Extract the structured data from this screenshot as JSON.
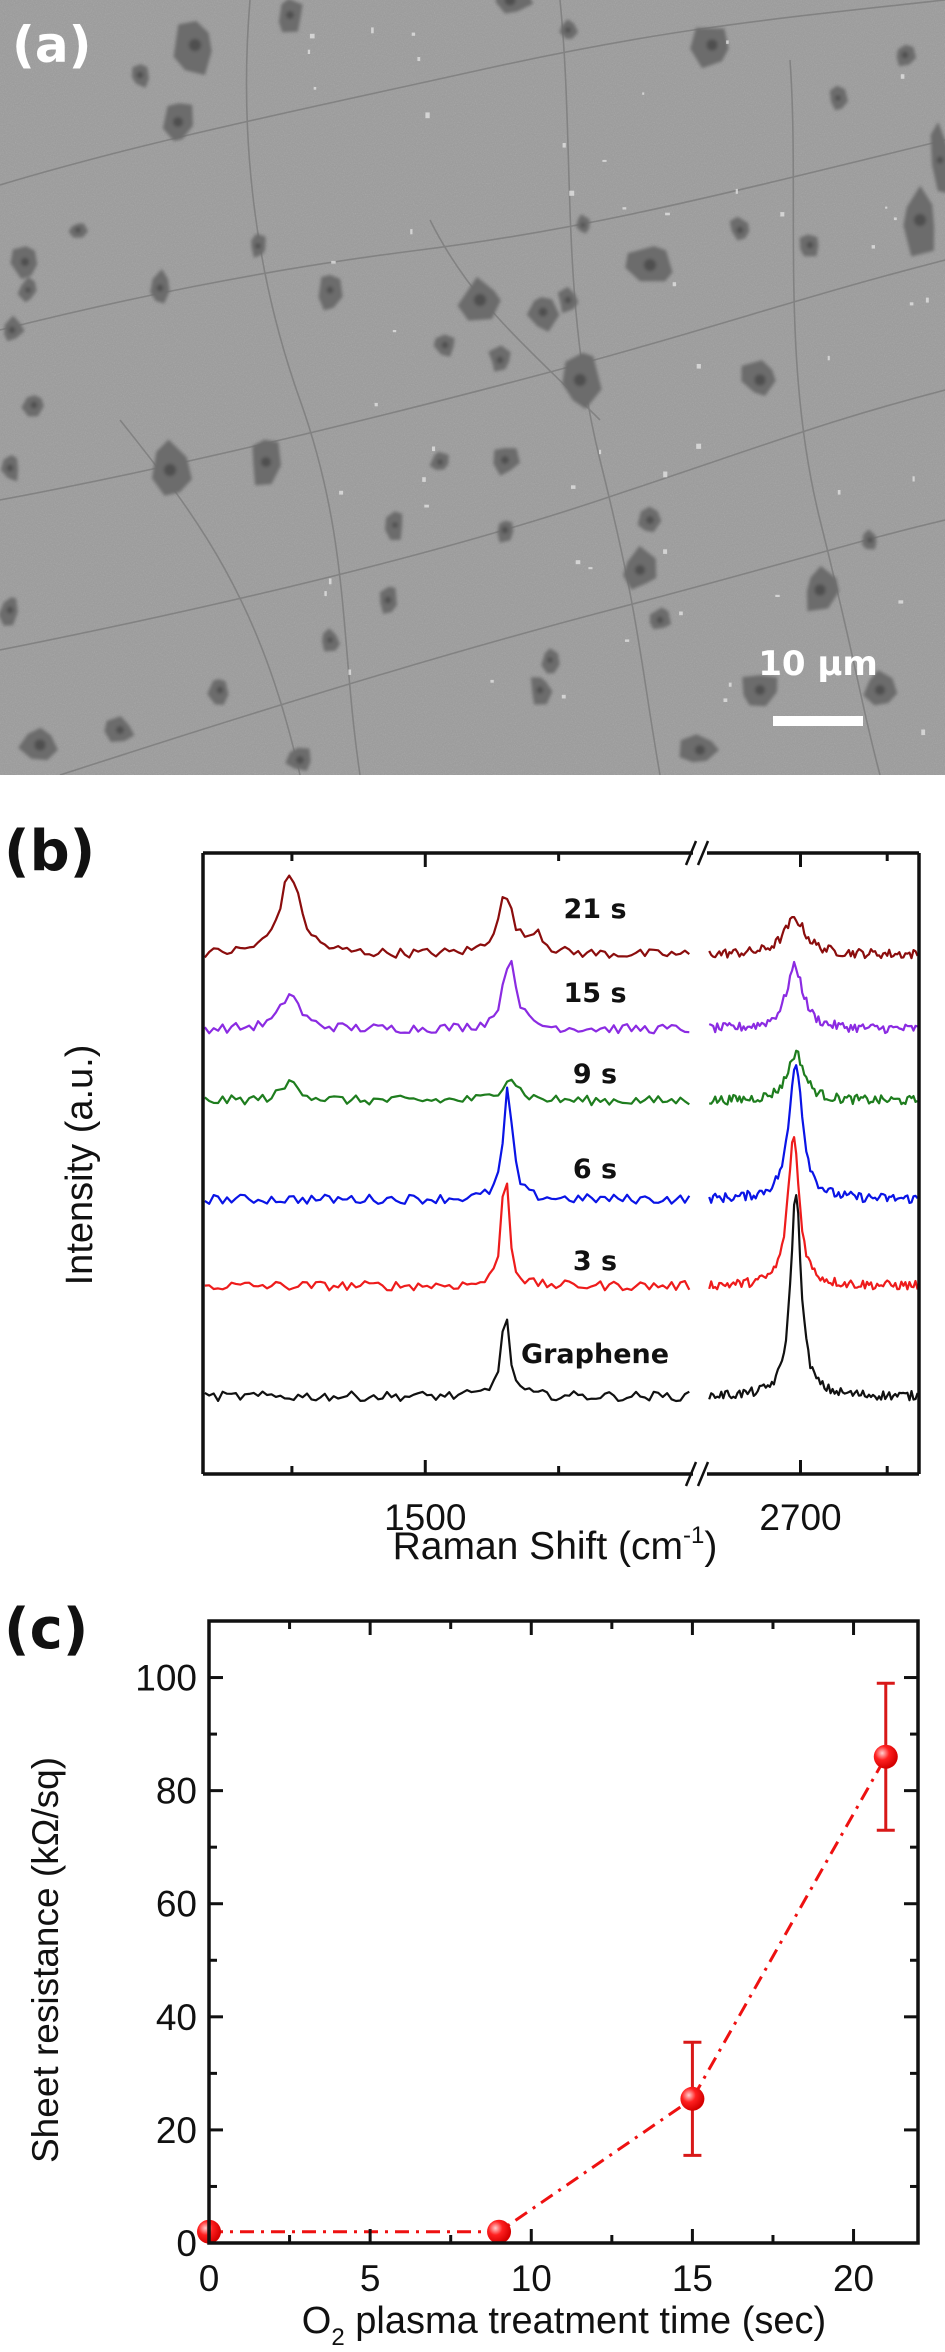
{
  "panel_a": {
    "label": "(a)",
    "scale_bar_text": "10 µm",
    "image_colors": {
      "background": "#9c9c9c",
      "flake": "#6c6c6c",
      "flake_dark": "#505050",
      "crack": "#7e7e7e",
      "particle": "#e6e6e6"
    }
  },
  "chart_data": [
    {
      "panel_label": "(b)",
      "type": "line",
      "title": "",
      "xlabel": "Raman Shift (cm",
      "xlabel_sup": "-1",
      "xlabel_tail": ")",
      "ylabel": "Intensity (a.u.)",
      "axis_break": true,
      "break_symbol": "//",
      "x_segments": [
        {
          "range": [
            1250,
            1800
          ],
          "major_ticks": [
            1500
          ],
          "minor_ticks": [
            1350,
            1650
          ],
          "tick_labels": [
            "1500"
          ]
        },
        {
          "range": [
            2540,
            2905
          ],
          "major_ticks": [
            2700
          ],
          "minor_ticks": [
            2850
          ],
          "tick_labels": [
            "2700"
          ]
        }
      ],
      "top_ticks_major": [
        1500,
        2700
      ],
      "top_ticks_minor": [
        1350,
        1650,
        2850
      ],
      "series": [
        {
          "name": "21 s",
          "color": "#8b0d0d",
          "offset": 6.3,
          "peaks": [
            {
              "center": 1348,
              "height": 1.35,
              "width": 28
            },
            {
              "center": 1590,
              "height": 0.95,
              "width": 22
            },
            {
              "center": 1625,
              "height": 0.35,
              "width": 18
            },
            {
              "center": 2690,
              "height": 0.6,
              "width": 45
            }
          ]
        },
        {
          "name": "15 s",
          "color": "#8b2be2",
          "offset": 5.05,
          "peaks": [
            {
              "center": 1348,
              "height": 0.6,
              "width": 25
            },
            {
              "center": 1595,
              "height": 1.2,
              "width": 18
            },
            {
              "center": 2690,
              "height": 1.05,
              "width": 35
            }
          ]
        },
        {
          "name": "9 s",
          "color": "#1e7d1e",
          "offset": 3.85,
          "peaks": [
            {
              "center": 1350,
              "height": 0.32,
              "width": 25
            },
            {
              "center": 1595,
              "height": 0.4,
              "width": 22
            },
            {
              "center": 2692,
              "height": 0.8,
              "width": 35
            }
          ]
        },
        {
          "name": "6 s",
          "color": "#0a14e6",
          "offset": 2.2,
          "peaks": [
            {
              "center": 1593,
              "height": 1.85,
              "width": 12
            },
            {
              "center": 2692,
              "height": 2.3,
              "width": 28
            }
          ]
        },
        {
          "name": "3 s",
          "color": "#ee1c1c",
          "offset": 0.75,
          "peaks": [
            {
              "center": 1590,
              "height": 2.0,
              "width": 10
            },
            {
              "center": 2688,
              "height": 2.5,
              "width": 24
            }
          ]
        },
        {
          "name": "Graphene",
          "color": "#111111",
          "offset": -1.1,
          "peaks": [
            {
              "center": 1590,
              "height": 1.35,
              "width": 12
            },
            {
              "center": 2692,
              "height": 3.4,
              "width": 22
            }
          ]
        }
      ],
      "ylim": [
        -2.4,
        8.0
      ]
    },
    {
      "panel_label": "(c)",
      "type": "scatter",
      "title": "",
      "xlabel_pre": "O",
      "xlabel_sub": "2",
      "xlabel_post": " plasma treatment time (sec)",
      "ylabel": "Sheet resistance (kΩ/sq)",
      "xlim": [
        0,
        22
      ],
      "ylim": [
        0,
        110
      ],
      "x_ticks": [
        0,
        5,
        10,
        15,
        20
      ],
      "x_tick_labels": [
        "0",
        "5",
        "10",
        "15",
        "20"
      ],
      "x_minor_ticks": [
        2.5,
        7.5,
        12.5,
        17.5
      ],
      "y_ticks": [
        0,
        20,
        40,
        60,
        80,
        100
      ],
      "y_tick_labels": [
        "0",
        "20",
        "40",
        "60",
        "80",
        "100"
      ],
      "y_minor_ticks": [
        10,
        30,
        50,
        70,
        90
      ],
      "series": [
        {
          "name": "Sheet resistance",
          "color": "#ee1111",
          "line_style": "dash-dot",
          "x": [
            0,
            9,
            15,
            21
          ],
          "y": [
            2,
            2,
            25.5,
            86
          ],
          "err_low": [
            null,
            null,
            15.5,
            73
          ],
          "err_high": [
            null,
            null,
            35.5,
            99
          ]
        }
      ]
    }
  ]
}
